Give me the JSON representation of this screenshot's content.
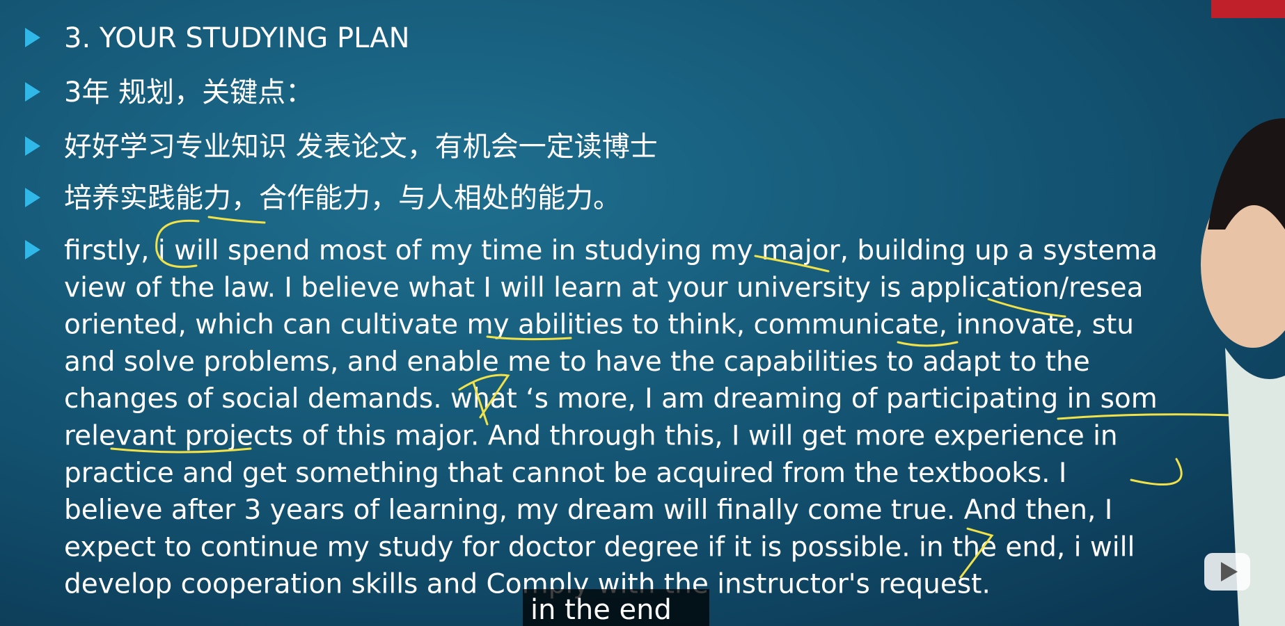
{
  "slide": {
    "bullets": [
      "3. YOUR STUDYING PLAN",
      "3年 规划，关键点：",
      "好好学习专业知识 发表论文，有机会一定读博士",
      "培养实践能力，合作能力，与人相处的能力。"
    ],
    "paragraph": [
      "firstly, i will spend most of my time in studying my major, building up a systema",
      "view of the law. I believe what I will learn at your university is application/resea",
      "oriented, which can cultivate my abilities to think, communicate, innovate, stu",
      "and solve problems, and enable me to have the capabilities to adapt to the",
      "changes of social demands. what ‘s more, I am dreaming of participating in som",
      "relevant projects of this major. And through this, I will get more experience in",
      "practice and get something that cannot be acquired from the textbooks. I",
      "believe after 3 years of learning, my dream will finally come true. And then, I",
      "expect to continue my study for doctor degree if it is possible. in the end, i will",
      "develop cooperation skills and Comply with the instructor's request."
    ]
  },
  "subtitle": "in the end"
}
